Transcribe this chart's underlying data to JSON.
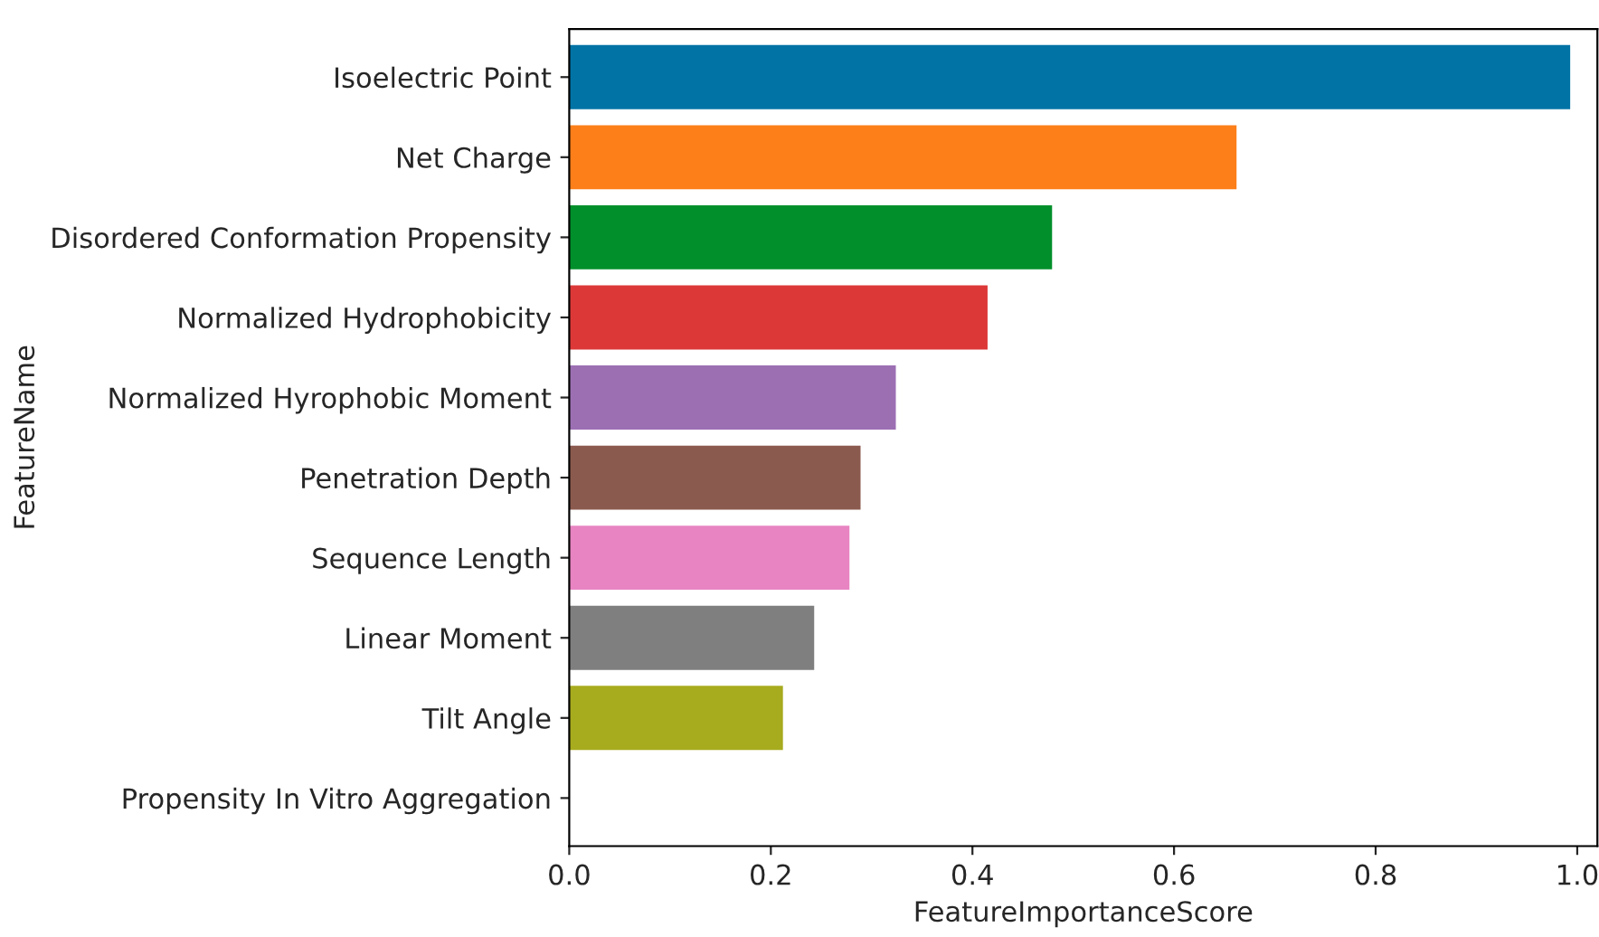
{
  "chart_data": {
    "type": "bar",
    "orientation": "horizontal",
    "xlabel": "FeatureImportanceScore",
    "ylabel": "FeatureName",
    "categories": [
      "Isoelectric Point",
      "Net Charge",
      "Disordered Conformation Propensity",
      "Normalized Hydrophobicity",
      "Normalized Hyrophobic Moment",
      "Penetration Depth",
      "Sequence Length",
      "Linear Moment",
      "Tilt Angle",
      "Propensity In Vitro Aggregation"
    ],
    "values": [
      0.993,
      0.662,
      0.479,
      0.415,
      0.324,
      0.289,
      0.278,
      0.243,
      0.212,
      0
    ],
    "colors": [
      "#0173a5",
      "#fc7f19",
      "#018f2b",
      "#dc3838",
      "#9c6fb3",
      "#8b5a4e",
      "#e884c2",
      "#7f7f7f",
      "#a7ab1e",
      null
    ],
    "xlim": [
      0,
      1.02
    ],
    "xticks": [
      {
        "value": 0,
        "label": "0.0"
      },
      0.2,
      0.4,
      0.6,
      0.8,
      {
        "value": 1,
        "label": "1.0"
      }
    ],
    "grid": false
  }
}
